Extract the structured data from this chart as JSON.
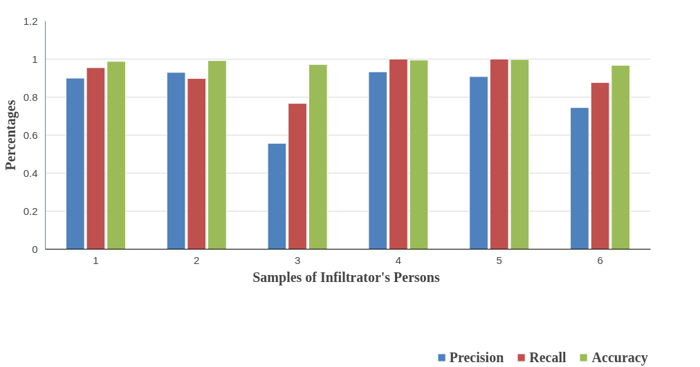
{
  "chart_data": {
    "type": "bar",
    "xlabel": "Samples of  Infiltrator's Persons",
    "ylabel": "Percentages",
    "categories": [
      "1",
      "2",
      "3",
      "4",
      "5",
      "6"
    ],
    "series": [
      {
        "name": "Precision",
        "color": "#4f81bd",
        "values": [
          0.9,
          0.93,
          0.557,
          0.933,
          0.908,
          0.745
        ]
      },
      {
        "name": "Recall",
        "color": "#c0504d",
        "values": [
          0.955,
          0.898,
          0.767,
          1.0,
          1.0,
          0.877
        ]
      },
      {
        "name": "Accuracy",
        "color": "#9bbb59",
        "values": [
          0.988,
          0.992,
          0.972,
          0.995,
          0.998,
          0.967
        ]
      }
    ],
    "ylim": [
      0,
      1.2
    ],
    "yticks": [
      0,
      0.2,
      0.4,
      0.6,
      0.8,
      {
        "value": 1,
        "label": "1"
      },
      1.2
    ],
    "grid": "y",
    "legend": "bottom"
  }
}
